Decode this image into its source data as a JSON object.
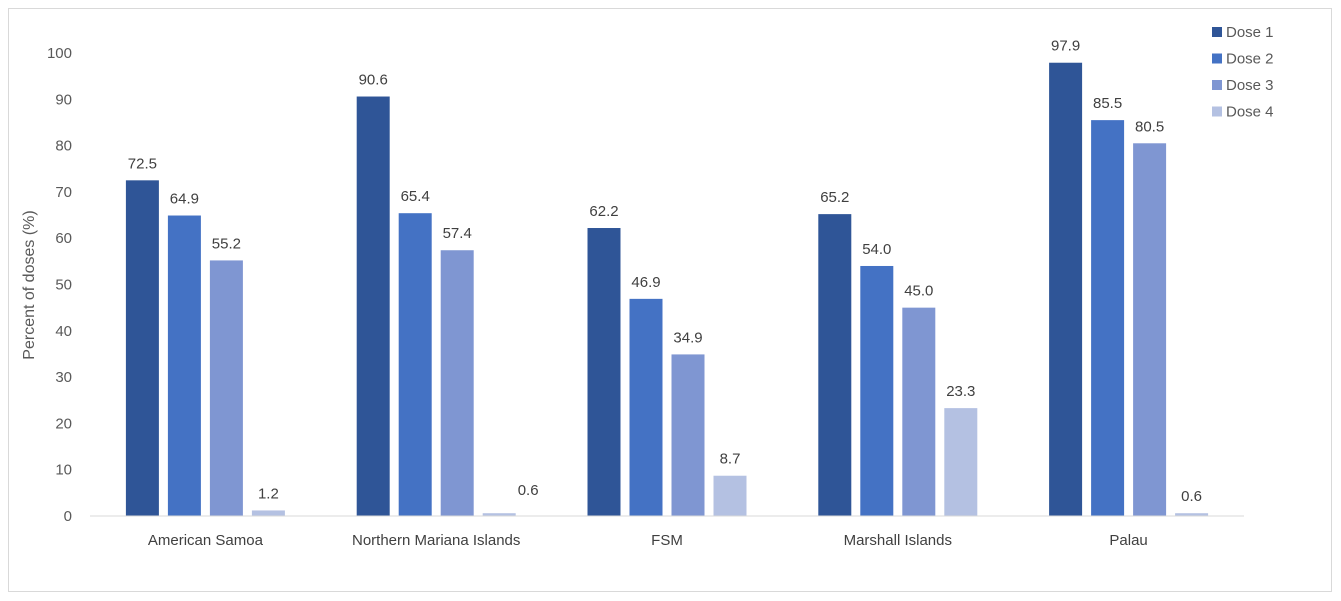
{
  "chart_data": {
    "type": "bar",
    "title": "",
    "xlabel": "",
    "ylabel": "Percent of doses (%)",
    "ylim": [
      0,
      100
    ],
    "yticks": [
      0,
      10,
      20,
      30,
      40,
      50,
      60,
      70,
      80,
      90,
      100
    ],
    "grid": false,
    "legend_position": "top-right",
    "categories": [
      "American Samoa",
      "Northern Mariana Islands",
      "FSM",
      "Marshall Islands",
      "Palau"
    ],
    "series": [
      {
        "name": "Dose 1",
        "color": "#2f5597",
        "values": [
          72.5,
          90.6,
          62.2,
          65.2,
          97.9
        ],
        "labels": [
          "72.5",
          "90.6",
          "62.2",
          "65.2",
          "97.9"
        ]
      },
      {
        "name": "Dose 2",
        "color": "#4472c4",
        "values": [
          64.9,
          65.4,
          46.9,
          54.0,
          85.5
        ],
        "labels": [
          "64.9",
          "65.4",
          "46.9",
          "54.0",
          "85.5"
        ]
      },
      {
        "name": "Dose 3",
        "color": "#7f96d2",
        "values": [
          55.2,
          57.4,
          34.9,
          45.0,
          80.5
        ],
        "labels": [
          "55.2",
          "57.4",
          "34.9",
          "45.0",
          "80.5"
        ]
      },
      {
        "name": "Dose 4",
        "color": "#b4c1e2",
        "values": [
          1.2,
          0.6,
          8.7,
          23.3,
          0.6
        ],
        "labels": [
          "1.2",
          "",
          "8.7",
          "23.3",
          "0.6"
        ],
        "side_labels": [
          "",
          "0.6",
          "",
          "",
          ""
        ]
      }
    ]
  }
}
